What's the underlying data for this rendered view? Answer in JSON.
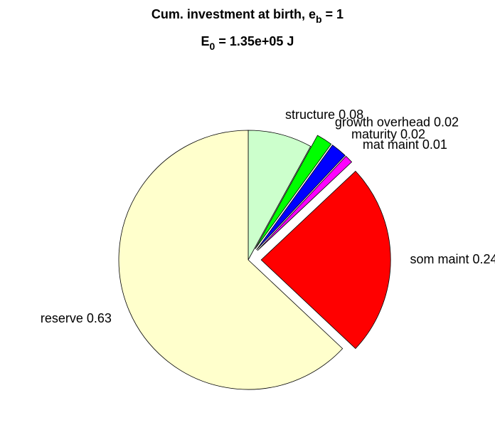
{
  "chart_data": {
    "type": "pie",
    "title_lines": [
      {
        "text": "Cum. investment at birth, e",
        "sub": "b",
        "rest": " = 1"
      },
      {
        "text": "E",
        "sub": "0",
        "rest": " = 1.35e+05 J"
      }
    ],
    "categories": [
      "structure 0.08",
      "growth overhead 0.02",
      "maturity 0.02",
      "mat maint 0.01",
      "som maint 0.24",
      "reserve 0.63"
    ],
    "values": [
      0.08,
      0.02,
      0.02,
      0.01,
      0.24,
      0.63
    ],
    "colors": [
      "#ccffcc",
      "#00ff00",
      "#0000ff",
      "#ff00ff",
      "#ff0000",
      "#ffffcc"
    ],
    "explode": [
      false,
      true,
      true,
      true,
      true,
      false
    ]
  }
}
